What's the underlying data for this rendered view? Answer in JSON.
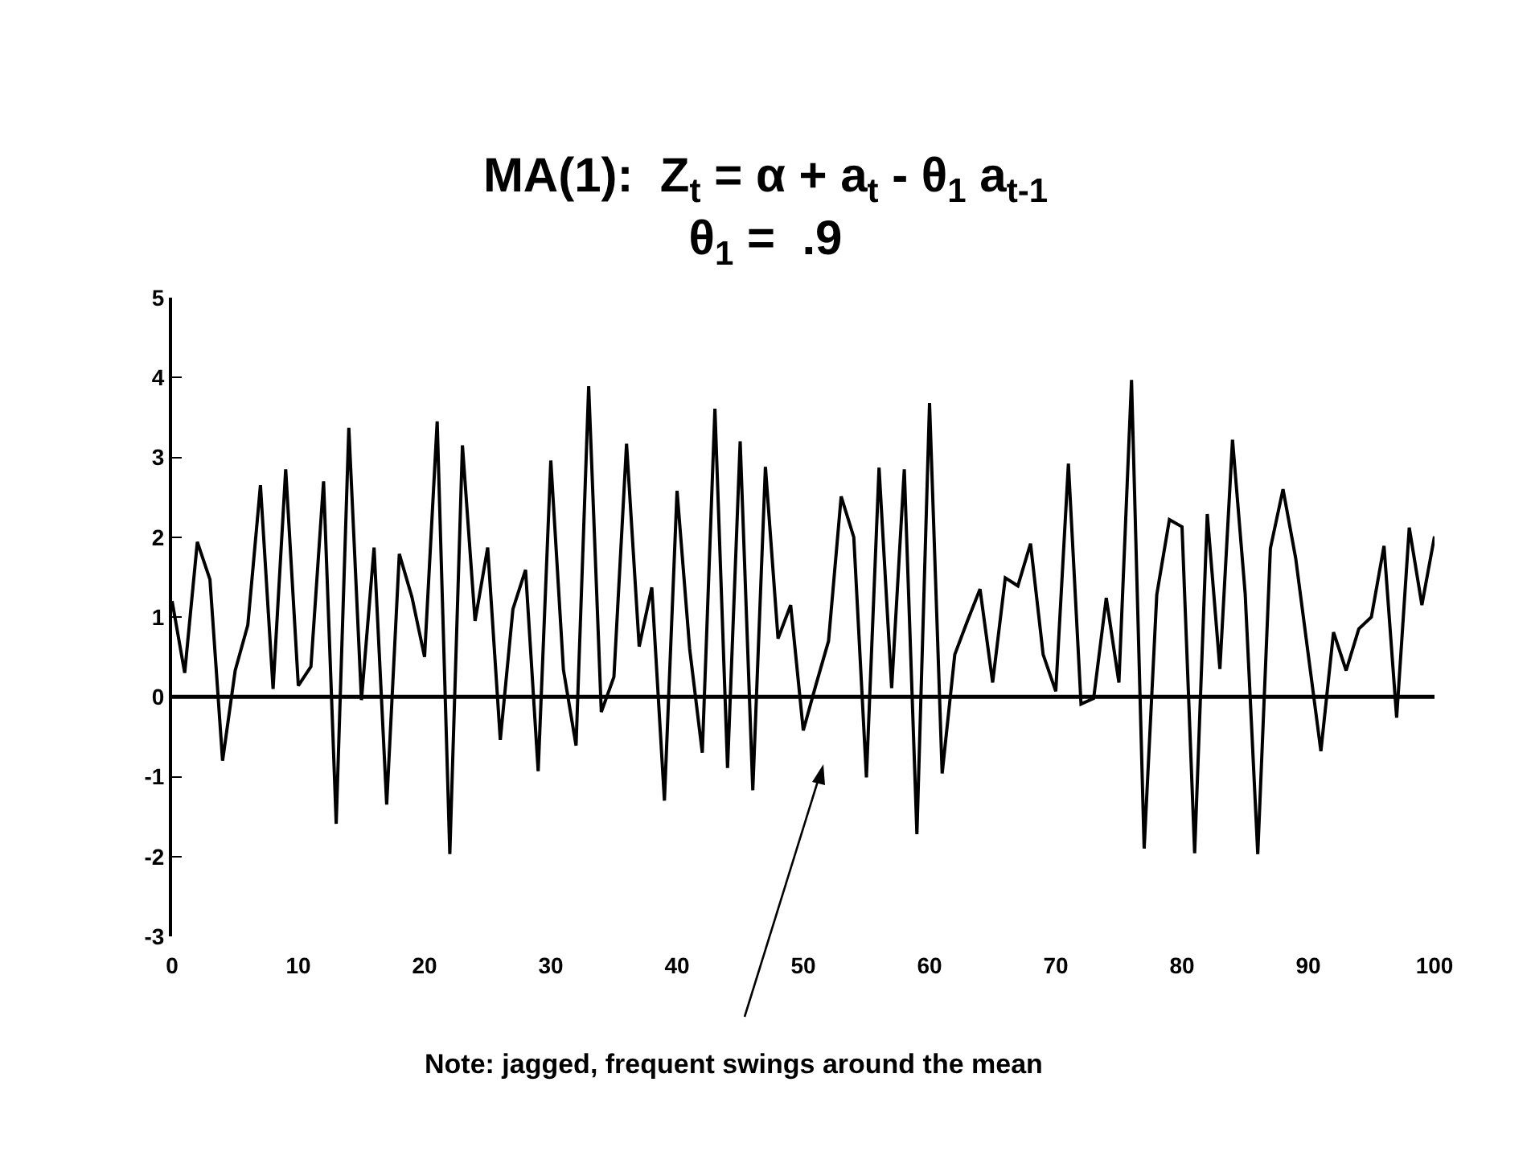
{
  "chart_data": {
    "type": "line",
    "title": "MA(1):  Z$_{t}$ = α + a$_{t}$ - θ$_{1}$ a$_{t-1}$",
    "subtitle": "θ$_{1}$ =  .9",
    "x": [
      0,
      1,
      2,
      3,
      4,
      5,
      6,
      7,
      8,
      9,
      10,
      11,
      12,
      13,
      14,
      15,
      16,
      17,
      18,
      19,
      20,
      21,
      22,
      23,
      24,
      25,
      26,
      27,
      28,
      29,
      30,
      31,
      32,
      33,
      34,
      35,
      36,
      37,
      38,
      39,
      40,
      41,
      42,
      43,
      44,
      45,
      46,
      47,
      48,
      49,
      50,
      51,
      52,
      53,
      54,
      55,
      56,
      57,
      58,
      59,
      60,
      61,
      62,
      63,
      64,
      65,
      66,
      67,
      68,
      69,
      70,
      71,
      72,
      73,
      74,
      75,
      76,
      77,
      78,
      79,
      80,
      81,
      82,
      83,
      84,
      85,
      86,
      87,
      88,
      89,
      90,
      91,
      92,
      93,
      94,
      95,
      96,
      97,
      98,
      99,
      100
    ],
    "series": [
      {
        "color": "#000000",
        "values": [
          1.2,
          0.3,
          1.94,
          1.47,
          -0.8,
          0.33,
          0.9,
          2.65,
          0.1,
          2.85,
          0.14,
          0.38,
          2.7,
          -1.59,
          3.37,
          -0.04,
          1.87,
          -1.35,
          1.79,
          1.25,
          0.5,
          3.45,
          -1.97,
          3.15,
          0.95,
          1.87,
          -0.54,
          1.1,
          1.59,
          -0.93,
          2.96,
          0.34,
          -0.61,
          3.89,
          -0.19,
          0.25,
          3.17,
          0.63,
          1.37,
          -1.3,
          2.58,
          0.6,
          -0.7,
          3.61,
          -0.89,
          3.2,
          -1.17,
          2.88,
          0.73,
          1.15,
          -0.42,
          0.15,
          0.7,
          2.51,
          2.0,
          -1.01,
          2.87,
          0.11,
          2.85,
          -1.72,
          3.68,
          -0.96,
          0.53,
          0.95,
          1.35,
          0.18,
          1.49,
          1.39,
          1.92,
          0.53,
          0.07,
          2.92,
          -0.09,
          -0.02,
          1.24,
          0.18,
          3.97,
          -1.9,
          1.28,
          2.22,
          2.13,
          -1.96,
          2.29,
          0.35,
          3.22,
          1.3,
          -1.97,
          1.86,
          2.6,
          1.74,
          0.53,
          -0.68,
          0.81,
          0.33,
          0.85,
          1.0,
          1.89,
          -0.26,
          2.12,
          1.15,
          2.01
        ]
      }
    ],
    "xlim": [
      0,
      100
    ],
    "xticks": [
      0,
      10,
      20,
      30,
      40,
      50,
      60,
      70,
      80,
      90,
      100
    ],
    "ylim": [
      -3,
      5
    ],
    "yticks": [
      -3,
      -2,
      -1,
      0,
      1,
      2,
      3,
      4,
      5
    ],
    "ref_lines": [
      {
        "axis": "y",
        "value": 0,
        "color": "#000000"
      }
    ],
    "annotations": [
      "Note: jagged, frequent swings around the mean"
    ],
    "grid": false,
    "marker": "none",
    "line_style": "solid"
  }
}
